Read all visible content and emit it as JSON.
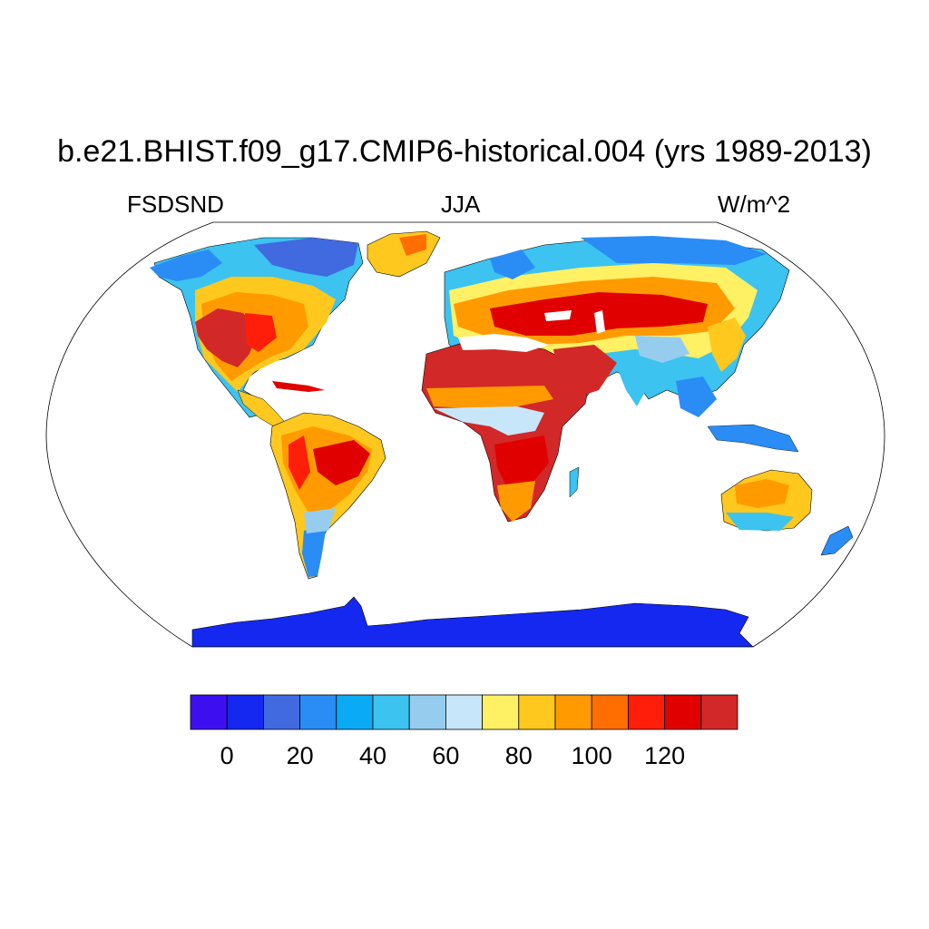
{
  "title": "b.e21.BHIST.f09_g17.CMIP6-historical.004 (yrs 1989-2013)",
  "left_subtitle": "FSDSND",
  "center_subtitle": "JJA",
  "right_subtitle": "W/m^2",
  "colorbar": {
    "labels": [
      "0",
      "20",
      "40",
      "60",
      "80",
      "100",
      "120"
    ],
    "colors": [
      "#3d0ff0",
      "#1428f0",
      "#4169e0",
      "#2a8cf5",
      "#0aaaf5",
      "#3cc3f0",
      "#96cdee",
      "#c8e6fa",
      "#fff064",
      "#ffc81e",
      "#ff9b00",
      "#ff6e00",
      "#ff1e0a",
      "#e10000",
      "#d22828"
    ]
  },
  "colors": {
    "ocean": "#ffffff",
    "outline": "#000000",
    "antarctica": "#1428f0"
  }
}
